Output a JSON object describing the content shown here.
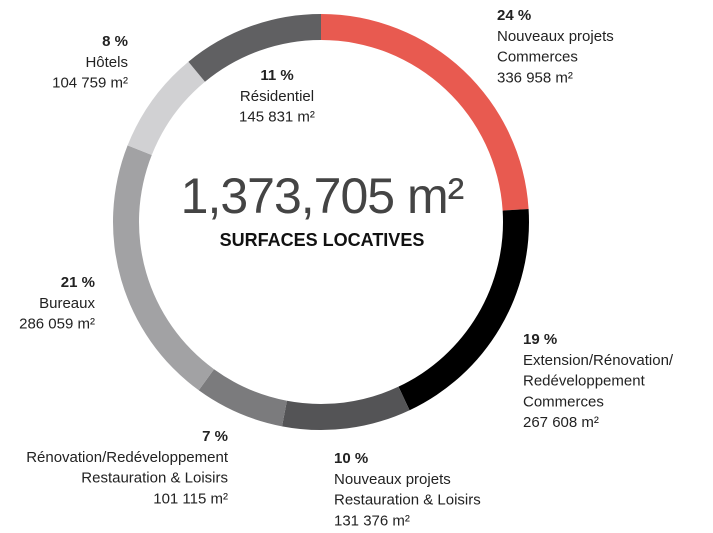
{
  "chart_data": {
    "type": "donut",
    "total": "1,373,705 m²",
    "subtitle": "SURFACES LOCATIVES",
    "categories": [
      [
        "Nouveaux projets",
        "Commerces"
      ],
      [
        "Extension/Rénovation/",
        "Redéveloppement",
        "Commerces"
      ],
      [
        "Nouveaux projets",
        "Restauration & Loisirs"
      ],
      [
        "Rénovation/Redéveloppement",
        "Restauration & Loisirs"
      ],
      [
        "Bureaux"
      ],
      [
        "Hôtels"
      ],
      [
        "Résidentiel"
      ]
    ],
    "values": [
      24,
      19,
      10,
      7,
      21,
      8,
      11
    ],
    "value_labels": [
      "24 %",
      "19 %",
      "10 %",
      "7 %",
      "21 %",
      "8 %",
      "11 %"
    ],
    "area_labels": [
      "336 958 m²",
      "267 608 m²",
      "131 376 m²",
      "101 115 m²",
      "286 059 m²",
      "104 759 m²",
      "145 831 m²"
    ],
    "colors": [
      "#e85a50",
      "#000000",
      "#545456",
      "#7b7b7d",
      "#a2a2a4",
      "#d1d1d3",
      "#606062"
    ]
  }
}
